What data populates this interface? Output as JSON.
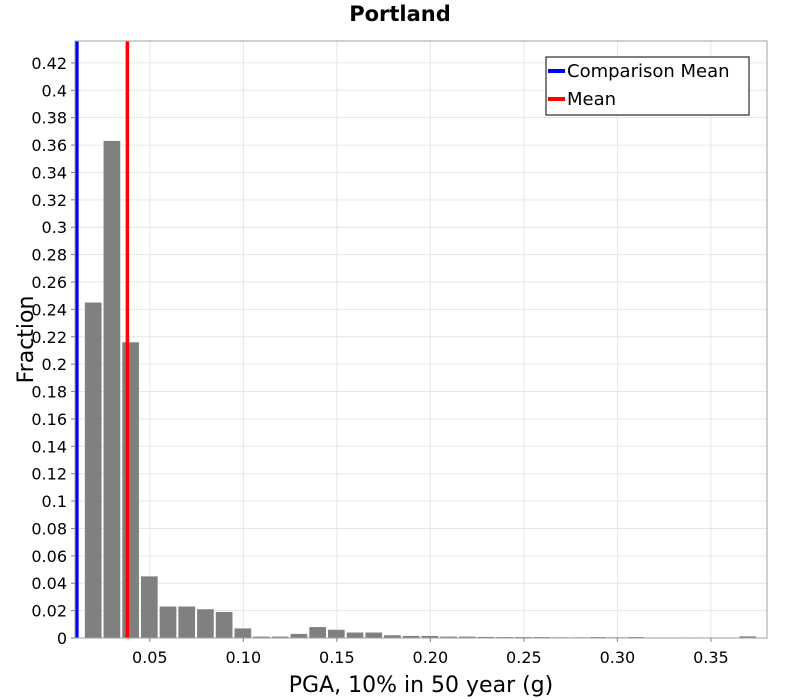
{
  "chart_data": {
    "type": "bar",
    "title": "Portland",
    "xlabel": "PGA, 10% in 50 year (g)",
    "ylabel": "Fraction",
    "xlim": [
      0.01,
      0.38
    ],
    "ylim": [
      0,
      0.436
    ],
    "xticks": [
      "0.05",
      "0.10",
      "0.15",
      "0.20",
      "0.25",
      "0.30",
      "0.35"
    ],
    "yticks": [
      "0",
      "0.02",
      "0.04",
      "0.06",
      "0.08",
      "0.1",
      "0.12",
      "0.14",
      "0.16",
      "0.18",
      "0.2",
      "0.22",
      "0.24",
      "0.26",
      "0.28",
      "0.3",
      "0.32",
      "0.34",
      "0.36",
      "0.38",
      "0.4",
      "0.42"
    ],
    "grid": true,
    "bin_width": 0.01,
    "bar_color": "#808080",
    "bins": [
      {
        "x": 0.02,
        "value": 0.245
      },
      {
        "x": 0.03,
        "value": 0.363
      },
      {
        "x": 0.04,
        "value": 0.216
      },
      {
        "x": 0.05,
        "value": 0.045
      },
      {
        "x": 0.06,
        "value": 0.023
      },
      {
        "x": 0.07,
        "value": 0.023
      },
      {
        "x": 0.08,
        "value": 0.021
      },
      {
        "x": 0.09,
        "value": 0.019
      },
      {
        "x": 0.1,
        "value": 0.007
      },
      {
        "x": 0.11,
        "value": 0.001
      },
      {
        "x": 0.12,
        "value": 0.001
      },
      {
        "x": 0.13,
        "value": 0.003
      },
      {
        "x": 0.14,
        "value": 0.008
      },
      {
        "x": 0.15,
        "value": 0.006
      },
      {
        "x": 0.16,
        "value": 0.004
      },
      {
        "x": 0.17,
        "value": 0.004
      },
      {
        "x": 0.18,
        "value": 0.002
      },
      {
        "x": 0.19,
        "value": 0.0015
      },
      {
        "x": 0.2,
        "value": 0.0015
      },
      {
        "x": 0.21,
        "value": 0.001
      },
      {
        "x": 0.22,
        "value": 0.001
      },
      {
        "x": 0.23,
        "value": 0.0008
      },
      {
        "x": 0.24,
        "value": 0.0007
      },
      {
        "x": 0.25,
        "value": 0.0007
      },
      {
        "x": 0.26,
        "value": 0.0007
      },
      {
        "x": 0.27,
        "value": 0.0005
      },
      {
        "x": 0.28,
        "value": 0.0005
      },
      {
        "x": 0.29,
        "value": 0.0007
      },
      {
        "x": 0.3,
        "value": 0.0005
      },
      {
        "x": 0.31,
        "value": 0.0007
      },
      {
        "x": 0.32,
        "value": 0.0004
      },
      {
        "x": 0.33,
        "value": 0.0004
      },
      {
        "x": 0.34,
        "value": 0.0004
      },
      {
        "x": 0.35,
        "value": 0.0004
      },
      {
        "x": 0.36,
        "value": 0.0004
      },
      {
        "x": 0.37,
        "value": 0.0012
      }
    ],
    "lines": [
      {
        "name": "Comparison Mean",
        "x": 0.011,
        "color": "#0000ff"
      },
      {
        "name": "Mean",
        "x": 0.038,
        "color": "#ff0000"
      }
    ],
    "legend": {
      "position": "top-right",
      "entries": [
        "Comparison Mean",
        "Mean"
      ]
    }
  }
}
